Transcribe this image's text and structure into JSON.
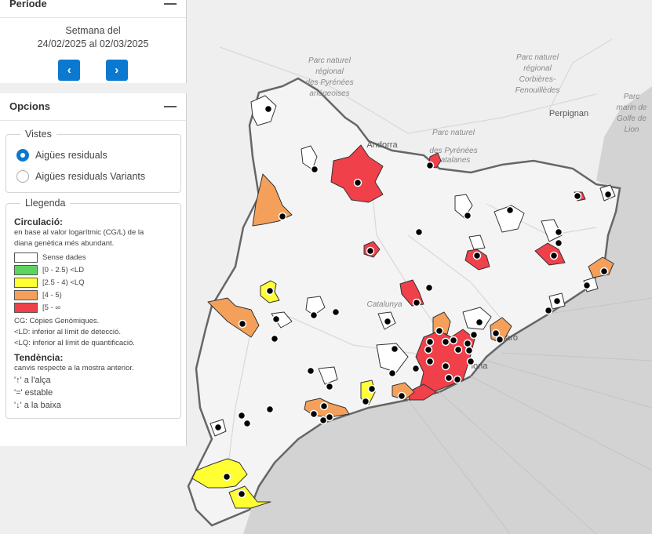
{
  "periode": {
    "title": "Període",
    "week_label": "Setmana del",
    "week_range": "24/02/2025 al 02/03/2025",
    "prev_icon": "chevron-left-icon",
    "next_icon": "chevron-right-icon"
  },
  "opcions": {
    "title": "Opcions",
    "vistes": {
      "legend": "Vistes",
      "options": [
        {
          "label": "Aigües residuals",
          "selected": true
        },
        {
          "label": "Aigües residuals Variants",
          "selected": false
        }
      ]
    },
    "llegenda": {
      "legend": "Llegenda",
      "circulacio_title": "Circulació:",
      "circulacio_desc_1": "en base al valor logarítmic (CG/L) de la",
      "circulacio_desc_2": "diana genètica més abundant.",
      "classes": [
        {
          "label": "Sense dades",
          "color": "#ffffff"
        },
        {
          "label": "[0 - 2.5) <LD",
          "color": "#5fd35f"
        },
        {
          "label": "[2.5 - 4) <LQ",
          "color": "#ffff33"
        },
        {
          "label": "[4 - 5)",
          "color": "#f5a05a"
        },
        {
          "label": "[5 - ∞",
          "color": "#f0404a"
        }
      ],
      "note_cg": "CG: Còpies Genòmiques.",
      "note_ld": "<LD: inferior al límit de detecció.",
      "note_lq": "<LQ: inferior al límit de quantificació.",
      "tendencia_title": "Tendència:",
      "tendencia_desc": "canvis respecte a la mostra anterior.",
      "trend_up": "'↑' a l'alça",
      "trend_eq": "'=' estable",
      "trend_down": "'↓' a la baixa"
    }
  },
  "map": {
    "labels": {
      "pyrenees_ariegeoises_1": "Parc naturel",
      "pyrenees_ariegeoises_2": "régional",
      "pyrenees_ariegeoises_3": "des Pyrénées",
      "pyrenees_ariegeoises_4": "ariégeoises",
      "corbieres_1": "Parc naturel",
      "corbieres_2": "régional",
      "corbieres_3": "Corbières-",
      "corbieres_4": "Fenouillèdes",
      "catalanes_1": "Parc naturel",
      "catalanes_2": "des Pyrénées",
      "catalanes_3": "catalanes",
      "marin_1": "Parc",
      "marin_2": "marin de",
      "marin_3": "Golfe de",
      "marin_4": "Lion",
      "andorra": "Andorra",
      "perpignan": "Perpignan",
      "catalunya": "Catalunya",
      "barcelona": "lona",
      "mataro": "aro"
    },
    "colors": {
      "land": "#efefef",
      "sea": "#d3d3d3",
      "border": "#666666",
      "point": "#000000"
    }
  }
}
